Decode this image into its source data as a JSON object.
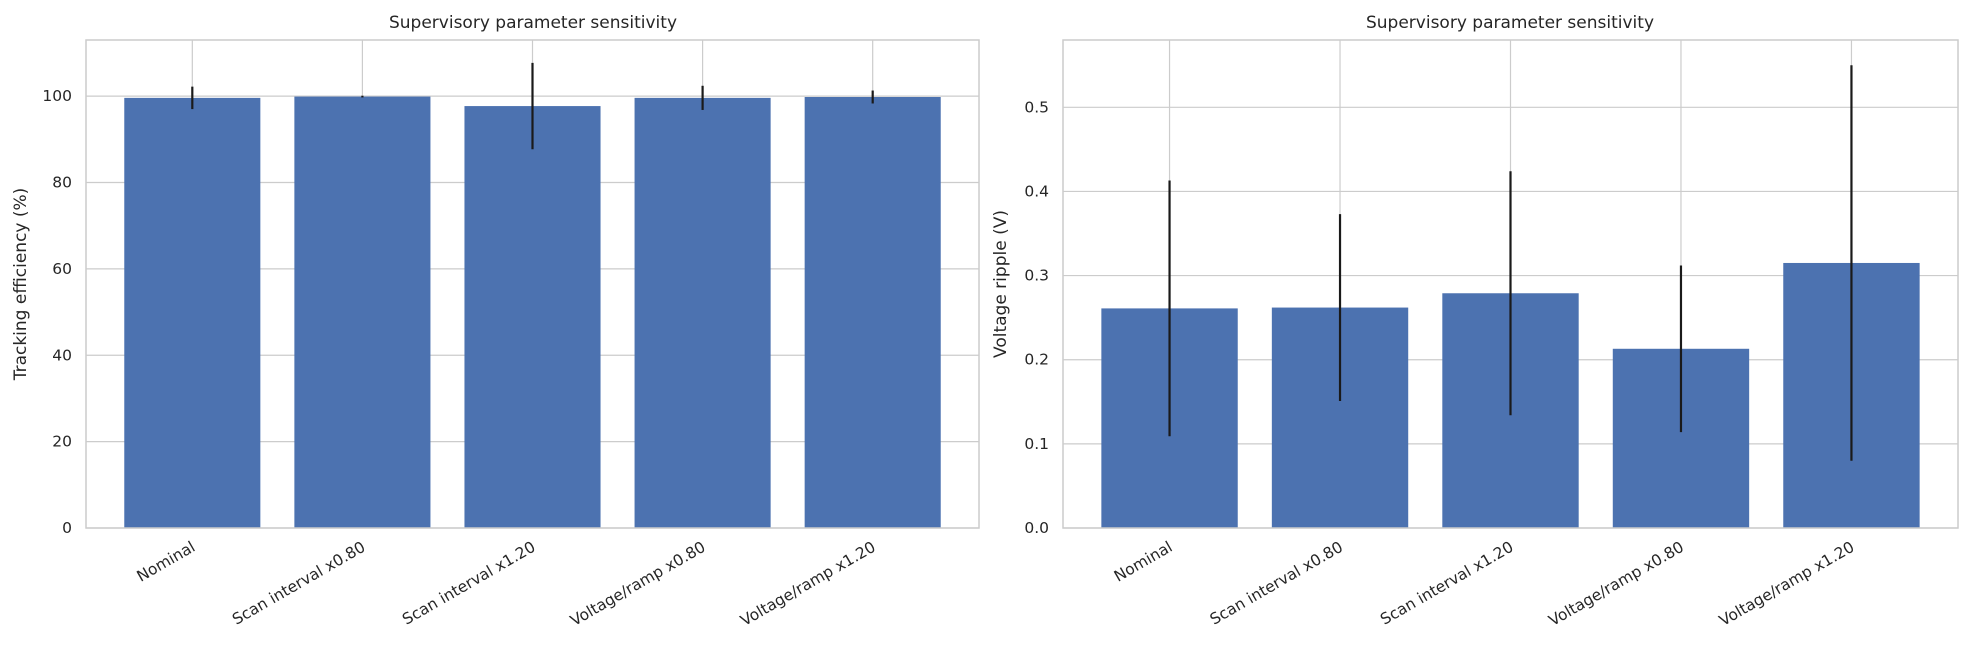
{
  "chart_data": [
    {
      "type": "bar",
      "title": "Supervisory parameter sensitivity",
      "xlabel": "",
      "ylabel": "Tracking efficiency (%)",
      "categories": [
        "Nominal",
        "Scan interval x0.80",
        "Scan interval x1.20",
        "Voltage/ramp x0.80",
        "Voltage/ramp x1.20"
      ],
      "values": [
        99.6,
        99.9,
        97.7,
        99.6,
        99.8
      ],
      "error": [
        2.6,
        0.2,
        10.0,
        2.8,
        1.5
      ],
      "ylim": [
        0,
        113
      ],
      "yticks": [
        0,
        20,
        40,
        60,
        80,
        100
      ],
      "ytick_labels": [
        "0",
        "20",
        "40",
        "60",
        "80",
        "100"
      ],
      "grid": true,
      "bar_color": "#4c72b0",
      "error_color": "#1a1a1a"
    },
    {
      "type": "bar",
      "title": "Supervisory parameter sensitivity",
      "xlabel": "",
      "ylabel": "Voltage ripple (V)",
      "categories": [
        "Nominal",
        "Scan interval x0.80",
        "Scan interval x1.20",
        "Voltage/ramp x0.80",
        "Voltage/ramp x1.20"
      ],
      "values": [
        0.261,
        0.262,
        0.279,
        0.213,
        0.315
      ],
      "error": [
        0.152,
        0.111,
        0.145,
        0.099,
        0.235
      ],
      "ylim": [
        0,
        0.58
      ],
      "yticks": [
        0.0,
        0.1,
        0.2,
        0.3,
        0.4,
        0.5
      ],
      "ytick_labels": [
        "0.0",
        "0.1",
        "0.2",
        "0.3",
        "0.4",
        "0.5"
      ],
      "grid": true,
      "bar_color": "#4c72b0",
      "error_color": "#1a1a1a"
    }
  ]
}
